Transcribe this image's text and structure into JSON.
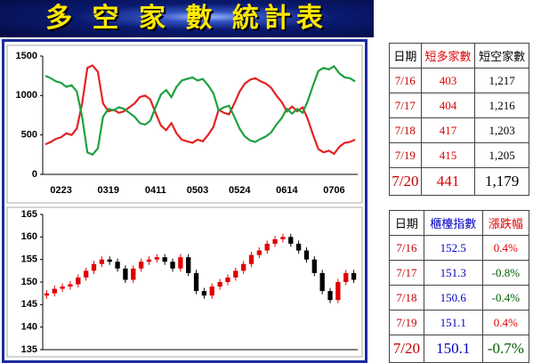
{
  "title": "多 空 家 數 統計表",
  "chart_data": [
    {
      "type": "line",
      "categories": [
        null,
        null,
        null,
        "0223",
        null,
        null,
        null,
        null,
        null,
        null,
        null,
        null,
        "0319",
        null,
        null,
        null,
        null,
        null,
        null,
        null,
        null,
        "0411",
        null,
        null,
        null,
        null,
        null,
        null,
        null,
        "0503",
        null,
        null,
        null,
        null,
        null,
        null,
        null,
        "0524",
        null,
        null,
        null,
        null,
        null,
        null,
        null,
        null,
        "0614",
        null,
        null,
        null,
        null,
        null,
        null,
        null,
        null,
        "0706",
        null,
        null,
        null,
        null
      ],
      "series": [
        {
          "name": "短多家數",
          "color": "#e52222",
          "values": [
            380,
            410,
            450,
            470,
            520,
            500,
            580,
            900,
            1350,
            1380,
            1300,
            900,
            800,
            820,
            780,
            800,
            850,
            900,
            980,
            1000,
            950,
            780,
            620,
            560,
            650,
            520,
            440,
            420,
            400,
            440,
            420,
            500,
            600,
            820,
            780,
            760,
            900,
            1050,
            1150,
            1200,
            1220,
            1180,
            1150,
            1100,
            1000,
            920,
            800,
            860,
            800,
            850,
            700,
            500,
            320,
            280,
            300,
            260,
            350,
            400,
            410,
            441
          ]
        },
        {
          "name": "短空家數",
          "color": "#1fa040",
          "values": [
            1250,
            1220,
            1180,
            1160,
            1110,
            1130,
            1050,
            730,
            280,
            250,
            330,
            730,
            830,
            810,
            850,
            830,
            780,
            730,
            650,
            630,
            680,
            850,
            1010,
            1070,
            980,
            1110,
            1190,
            1210,
            1230,
            1190,
            1210,
            1130,
            1030,
            810,
            850,
            870,
            730,
            580,
            480,
            430,
            410,
            450,
            480,
            530,
            630,
            710,
            830,
            770,
            830,
            780,
            930,
            1130,
            1310,
            1350,
            1330,
            1370,
            1280,
            1230,
            1220,
            1179
          ]
        }
      ],
      "ylim": [
        0,
        1500
      ],
      "yticks": [
        0,
        500,
        1000,
        1500
      ]
    },
    {
      "type": "candlestick",
      "up_color": "#e00000",
      "down_color": "#000000",
      "open": [
        147,
        147.5,
        148.5,
        149,
        149.5,
        151,
        152.5,
        154,
        155,
        154.5,
        153,
        150.5,
        153,
        154.5,
        155,
        155.5,
        154.5,
        153,
        155.5,
        152,
        148,
        147,
        149,
        150,
        151,
        152.5,
        154,
        156,
        157,
        158.5,
        159.5,
        160,
        158.5,
        157,
        155,
        152,
        148,
        146,
        150,
        152
      ],
      "close": [
        147.5,
        148.5,
        149,
        149.5,
        151,
        152.5,
        154,
        155,
        154.5,
        153,
        150.5,
        153,
        154.5,
        155,
        155.5,
        154.5,
        153,
        155.5,
        152,
        148,
        147,
        149,
        150,
        151,
        152.5,
        154,
        156,
        157,
        158.5,
        159.5,
        160,
        158.5,
        157,
        155,
        152,
        148,
        146,
        150,
        152,
        150.5
      ],
      "high": [
        148.2,
        149.2,
        149.7,
        150.2,
        151.7,
        153.2,
        154.7,
        155.7,
        155.7,
        155.2,
        153.7,
        153.7,
        155.2,
        155.7,
        156.2,
        156.2,
        155.2,
        156.2,
        156.2,
        152.7,
        148.7,
        149.7,
        150.7,
        151.7,
        153.2,
        154.7,
        156.7,
        157.7,
        159.2,
        160.2,
        160.7,
        160.7,
        159.2,
        157.7,
        155.7,
        152.7,
        148.7,
        150.7,
        152.7,
        152.7
      ],
      "low": [
        146.3,
        146.8,
        147.8,
        148.3,
        148.8,
        150.3,
        151.8,
        153.3,
        153.8,
        152.3,
        149.8,
        149.8,
        152.3,
        153.8,
        154.3,
        153.8,
        152.3,
        152.3,
        151.3,
        147.3,
        146.3,
        146.3,
        148.3,
        149.3,
        150.3,
        151.8,
        153.3,
        155.3,
        156.3,
        157.8,
        158.8,
        157.8,
        156.3,
        154.3,
        151.3,
        147.3,
        145.3,
        145.3,
        149.3,
        149.8
      ],
      "ylim": [
        135,
        165
      ],
      "yticks": [
        135,
        140,
        145,
        150,
        155,
        160,
        165
      ]
    }
  ],
  "tables": [
    {
      "header": [
        "日期",
        "短多家數",
        "短空家數"
      ],
      "header_colors": [
        "#000000",
        "#e00000",
        "#000000"
      ],
      "column_colors": [
        "#c00000",
        "#e00000",
        "#000000"
      ],
      "rows": [
        [
          "7/16",
          "403",
          "1,217"
        ],
        [
          "7/17",
          "404",
          "1,216"
        ],
        [
          "7/18",
          "417",
          "1,203"
        ],
        [
          "7/19",
          "415",
          "1,205"
        ],
        [
          "7/20",
          "441",
          "1,179"
        ]
      ]
    },
    {
      "header": [
        "日期",
        "櫃檯指數",
        "漲跌幅"
      ],
      "header_colors": [
        "#000000",
        "#0000c0",
        "#e00000"
      ],
      "column_colors": [
        "#c00000",
        "#0000c0",
        [
          "#e00000",
          "#006000",
          "#006000",
          "#e00000",
          "#006000"
        ]
      ],
      "rows": [
        [
          "7/16",
          "152.5",
          "0.4%"
        ],
        [
          "7/17",
          "151.3",
          "-0.8%"
        ],
        [
          "7/18",
          "150.6",
          "-0.4%"
        ],
        [
          "7/19",
          "151.1",
          "0.4%"
        ],
        [
          "7/20",
          "150.1",
          "-0.7%"
        ]
      ]
    }
  ]
}
